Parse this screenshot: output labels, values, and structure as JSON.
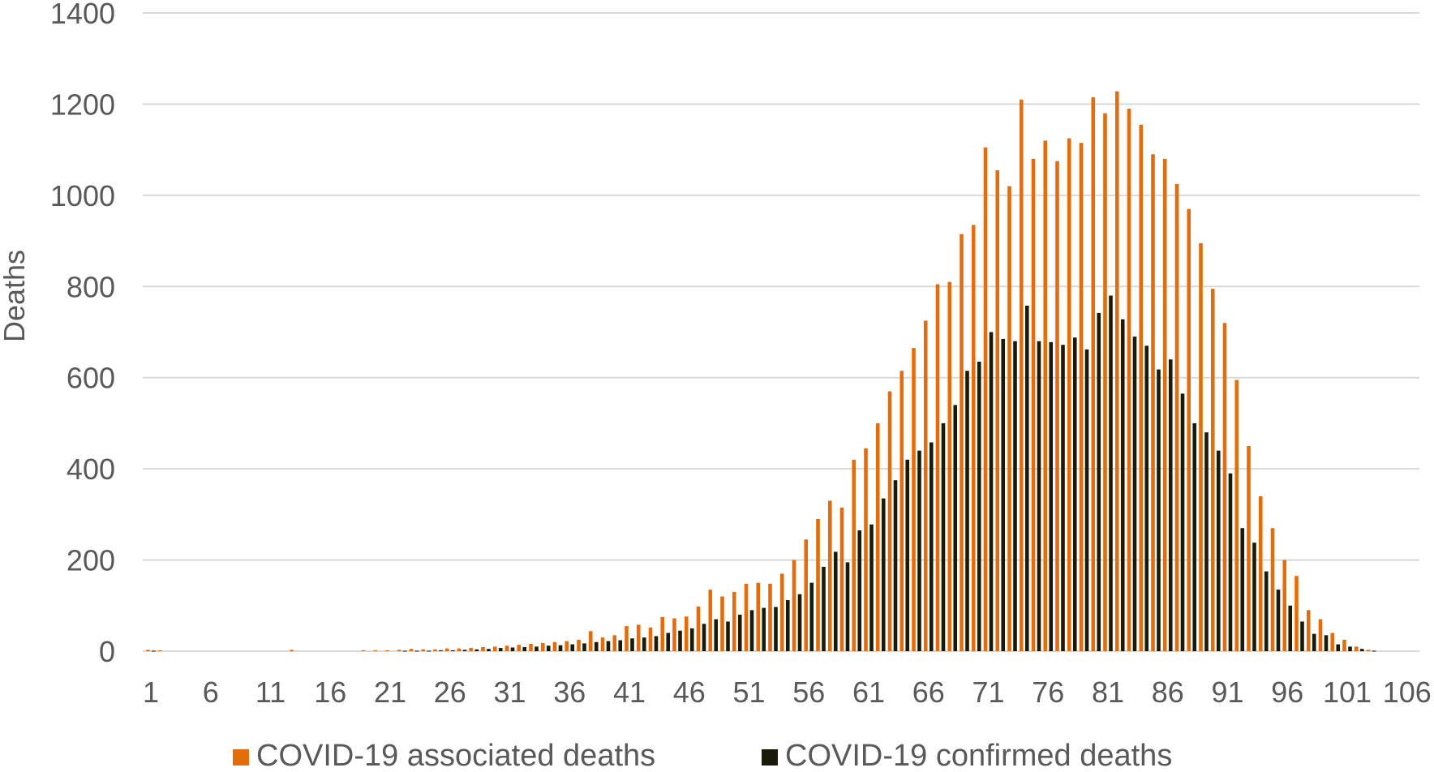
{
  "chart_data": {
    "type": "bar",
    "ylabel": "Deaths",
    "xlabel": "",
    "ylim": [
      0,
      1400
    ],
    "yticks": [
      0,
      200,
      400,
      600,
      800,
      1000,
      1200,
      1400
    ],
    "xticks": [
      1,
      6,
      11,
      16,
      21,
      26,
      31,
      36,
      41,
      46,
      51,
      56,
      61,
      66,
      71,
      76,
      81,
      86,
      91,
      96,
      101,
      106
    ],
    "grid": true,
    "legend": "bottom",
    "x": [
      1,
      2,
      3,
      4,
      5,
      6,
      7,
      8,
      9,
      10,
      11,
      12,
      13,
      14,
      15,
      16,
      17,
      18,
      19,
      20,
      21,
      22,
      23,
      24,
      25,
      26,
      27,
      28,
      29,
      30,
      31,
      32,
      33,
      34,
      35,
      36,
      37,
      38,
      39,
      40,
      41,
      42,
      43,
      44,
      45,
      46,
      47,
      48,
      49,
      50,
      51,
      52,
      53,
      54,
      55,
      56,
      57,
      58,
      59,
      60,
      61,
      62,
      63,
      64,
      65,
      66,
      67,
      68,
      69,
      70,
      71,
      72,
      73,
      74,
      75,
      76,
      77,
      78,
      79,
      80,
      81,
      82,
      83,
      84,
      85,
      86,
      87,
      88,
      89,
      90,
      91,
      92,
      93,
      94,
      95,
      96,
      97,
      98,
      99,
      100,
      101,
      102,
      103
    ],
    "series": [
      {
        "name": "COVID-19 associated deaths",
        "color": "#e46c0a",
        "values": [
          3,
          2,
          0,
          0,
          0,
          0,
          0,
          0,
          0,
          0,
          0,
          0,
          3,
          0,
          0,
          0,
          0,
          0,
          2,
          2,
          2,
          3,
          5,
          4,
          4,
          6,
          6,
          7,
          9,
          10,
          12,
          14,
          16,
          18,
          20,
          22,
          25,
          44,
          30,
          35,
          55,
          58,
          52,
          75,
          72,
          76,
          98,
          135,
          120,
          130,
          148,
          150,
          148,
          170,
          200,
          245,
          290,
          330,
          315,
          420,
          445,
          500,
          570,
          615,
          665,
          725,
          805,
          810,
          915,
          935,
          1105,
          1055,
          1020,
          1210,
          1080,
          1120,
          1075,
          1125,
          1115,
          1215,
          1180,
          1228,
          1190,
          1155,
          1090,
          1080,
          1025,
          970,
          895,
          795,
          720,
          595,
          450,
          340,
          270,
          200,
          165,
          90,
          70,
          40,
          25,
          10,
          3
        ]
      },
      {
        "name": "COVID-19 confirmed deaths",
        "color": "#1a1a0a",
        "values": [
          1,
          0,
          0,
          0,
          0,
          0,
          0,
          0,
          0,
          0,
          0,
          0,
          0,
          0,
          0,
          0,
          0,
          0,
          0,
          0,
          0,
          1,
          1,
          1,
          2,
          2,
          3,
          4,
          5,
          7,
          8,
          9,
          10,
          12,
          13,
          15,
          17,
          20,
          22,
          24,
          28,
          30,
          33,
          40,
          45,
          50,
          60,
          70,
          65,
          80,
          90,
          95,
          97,
          112,
          125,
          150,
          185,
          218,
          195,
          265,
          278,
          335,
          375,
          420,
          440,
          458,
          500,
          540,
          615,
          635,
          700,
          685,
          680,
          758,
          680,
          678,
          672,
          688,
          662,
          742,
          780,
          728,
          690,
          670,
          618,
          640,
          565,
          500,
          480,
          440,
          390,
          270,
          238,
          175,
          135,
          100,
          65,
          38,
          35,
          15,
          10,
          5,
          1
        ]
      }
    ]
  }
}
